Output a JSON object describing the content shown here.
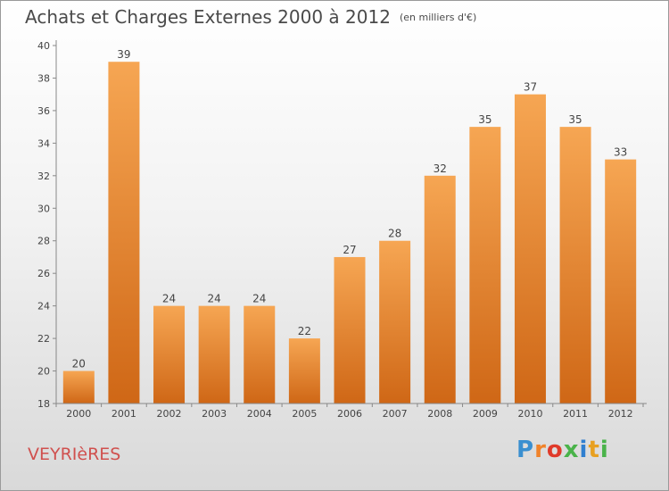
{
  "chart_data": {
    "type": "bar",
    "title": "Achats et Charges Externes 2000 à 2012",
    "subtitle": "(en milliers d'€)",
    "xlabel": "",
    "ylabel": "",
    "categories": [
      "2000",
      "2001",
      "2002",
      "2003",
      "2004",
      "2005",
      "2006",
      "2007",
      "2008",
      "2009",
      "2010",
      "2011",
      "2012"
    ],
    "values": [
      20,
      39,
      24,
      24,
      24,
      22,
      27,
      28,
      32,
      35,
      37,
      35,
      33
    ],
    "ylim": [
      18,
      40
    ],
    "yticks": [
      "18",
      "20",
      "22",
      "24",
      "26",
      "28",
      "30",
      "32",
      "34",
      "36",
      "38",
      "40"
    ],
    "grid": false,
    "data_labels": true,
    "bar_color": "#f08a2c"
  },
  "footer": {
    "place_name": "VEYRIèRES",
    "brand": "Proxiti",
    "brand_colors": [
      "#3a8fd0",
      "#f0832a",
      "#e03a2a",
      "#4ab34a",
      "#2f7fd0",
      "#e8a020",
      "#4ab34a"
    ]
  }
}
